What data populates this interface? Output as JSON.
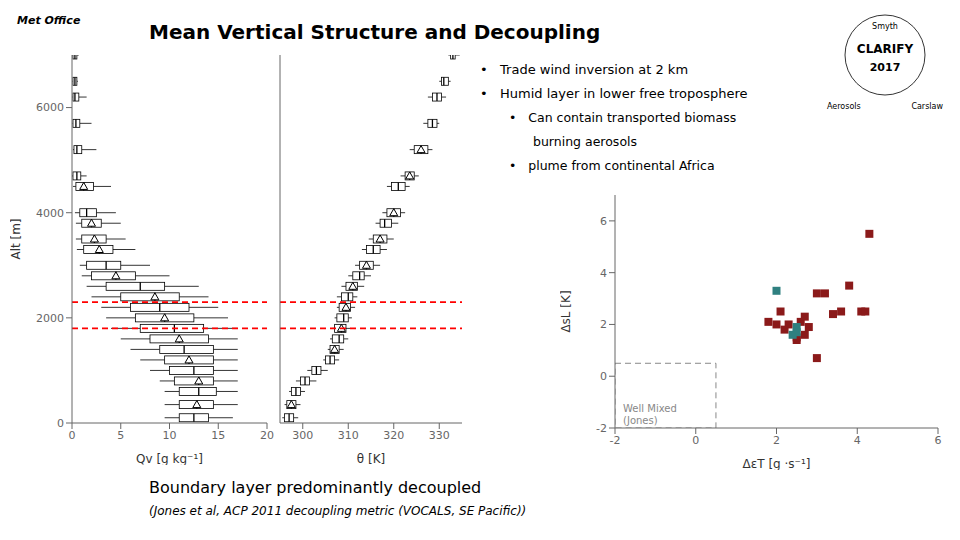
{
  "chart_data": [
    {
      "type": "box",
      "orientation": "horizontal",
      "title": "Mean Vertical Structure and Decoupling",
      "annotations": [
        "•   Trade wind inversion at 2 km",
        "•   Humid layer in lower free troposphere",
        "•   Can contain transported biomass",
        "burning aerosols",
        "•   plume from continental Africa",
        "Boundary layer predominantly decoupled",
        "(Jones et al, ACP 2011 decoupling metric (VOCALS, SE Pacific))",
        "Met Office",
        "CLARIFY",
        "2017",
        "Smyth",
        "Aerosols",
        "Carslaw"
      ],
      "xlabel": "Qv [g kg⁻¹]",
      "ylabel": "Alt [m]",
      "xlim": [
        0,
        20
      ],
      "xticks": [
        0,
        5,
        10,
        15,
        20
      ],
      "ylim": [
        0,
        7000
      ],
      "yticks": [
        0,
        2000,
        4000,
        6000
      ],
      "grid": false,
      "y": [
        7000,
        6500,
        6200,
        5700,
        5200,
        4700,
        4500,
        4000,
        3800,
        3500,
        3300,
        3000,
        2800,
        2600,
        2400,
        2200,
        2000,
        1800,
        1600,
        1400,
        1200,
        1000,
        800,
        600,
        350,
        100
      ],
      "median": [
        0.3,
        0.3,
        0.3,
        0.4,
        0.5,
        0.5,
        1.2,
        1.5,
        2.0,
        2.3,
        2.8,
        3.5,
        4.5,
        7.0,
        8.5,
        9.0,
        9.5,
        10.5,
        11.0,
        11.5,
        12.0,
        12.5,
        13.0,
        13.0,
        12.8,
        12.5
      ],
      "q1": [
        0.1,
        0.1,
        0.1,
        0.1,
        0.2,
        0.1,
        0.4,
        0.8,
        1.0,
        1.0,
        1.2,
        1.5,
        2.0,
        3.5,
        5.0,
        6.0,
        6.5,
        7.0,
        8.0,
        9.0,
        9.5,
        10.0,
        10.5,
        11.0,
        11.0,
        11.0
      ],
      "q3": [
        0.5,
        0.5,
        0.7,
        0.8,
        1.0,
        0.9,
        2.2,
        2.5,
        3.0,
        3.5,
        4.2,
        5.0,
        6.5,
        9.5,
        11.0,
        12.0,
        12.5,
        13.5,
        14.0,
        14.5,
        14.5,
        14.5,
        14.5,
        14.8,
        14.5,
        14.0
      ],
      "whisker_low": [
        0.05,
        0.05,
        0.05,
        0.05,
        0.1,
        0.0,
        0.1,
        0.3,
        0.4,
        0.4,
        0.5,
        0.8,
        1.0,
        1.5,
        2.0,
        3.0,
        3.5,
        4.0,
        5.0,
        6.0,
        7.0,
        8.0,
        9.0,
        9.5,
        9.5,
        9.5
      ],
      "whisker_high": [
        0.7,
        0.6,
        1.5,
        2.0,
        2.5,
        1.5,
        4.0,
        4.5,
        5.0,
        5.5,
        6.5,
        8.0,
        10.0,
        13.0,
        14.0,
        15.0,
        16.0,
        17.0,
        17.0,
        17.0,
        17.0,
        17.0,
        17.0,
        17.0,
        17.0,
        16.5
      ],
      "marker": "triangle",
      "marker_shown": [
        false,
        false,
        false,
        false,
        false,
        false,
        true,
        false,
        true,
        true,
        true,
        false,
        true,
        false,
        true,
        false,
        true,
        false,
        true,
        false,
        true,
        false,
        true,
        false,
        true,
        false
      ],
      "reference_lines": [
        {
          "y": 2300,
          "color": "red",
          "line_style": "dashed"
        },
        {
          "y": 1800,
          "color": "red",
          "line_style": "dashed"
        }
      ]
    },
    {
      "type": "box",
      "orientation": "horizontal",
      "xlabel": "θ [K]",
      "xlim": [
        295,
        335
      ],
      "xticks": [
        300,
        310,
        320,
        330
      ],
      "ylim": [
        0,
        7000
      ],
      "yticks": [
        0,
        2000,
        4000,
        6000
      ],
      "tick_labels": "x",
      "grid": false,
      "y": [
        7000,
        6500,
        6200,
        5700,
        5200,
        4700,
        4500,
        4000,
        3800,
        3500,
        3300,
        3000,
        2800,
        2600,
        2400,
        2200,
        2000,
        1800,
        1600,
        1400,
        1200,
        1000,
        800,
        600,
        350,
        100
      ],
      "median": [
        333.0,
        331.0,
        329.5,
        328.5,
        326.0,
        323.5,
        321.0,
        320.0,
        318.0,
        317.0,
        315.5,
        314.0,
        312.5,
        311.0,
        310.0,
        309.5,
        309.0,
        308.5,
        308.0,
        307.0,
        306.0,
        303.0,
        300.5,
        298.5,
        297.5,
        297.0
      ],
      "q1": [
        332.5,
        330.5,
        328.5,
        327.5,
        324.5,
        322.5,
        319.5,
        318.5,
        317.0,
        315.5,
        314.0,
        312.5,
        311.0,
        309.5,
        308.5,
        308.0,
        307.5,
        307.0,
        306.5,
        306.0,
        305.0,
        302.0,
        299.5,
        297.5,
        296.5,
        296.0
      ],
      "q3": [
        333.5,
        332.0,
        330.5,
        329.5,
        327.5,
        324.5,
        322.5,
        321.5,
        319.5,
        318.5,
        317.0,
        315.5,
        313.5,
        312.0,
        311.0,
        310.5,
        310.0,
        309.5,
        309.0,
        308.0,
        307.0,
        304.0,
        301.5,
        299.5,
        298.5,
        298.0
      ],
      "whisker_low": [
        332.0,
        330.0,
        327.5,
        326.5,
        323.5,
        321.5,
        318.5,
        317.5,
        316.0,
        314.5,
        313.0,
        311.5,
        310.0,
        308.5,
        307.5,
        307.5,
        307.0,
        306.5,
        306.0,
        305.5,
        304.5,
        301.0,
        298.5,
        297.0,
        296.0,
        295.5
      ],
      "whisker_high": [
        334.5,
        332.5,
        331.5,
        330.0,
        328.5,
        325.5,
        323.5,
        322.5,
        321.0,
        320.0,
        318.5,
        317.0,
        315.0,
        313.5,
        312.0,
        311.5,
        310.8,
        310.5,
        310.0,
        309.0,
        308.0,
        305.5,
        303.0,
        300.5,
        299.5,
        299.0
      ],
      "marker": "triangle",
      "marker_shown": [
        false,
        false,
        false,
        false,
        true,
        true,
        false,
        true,
        false,
        true,
        false,
        true,
        false,
        true,
        false,
        true,
        false,
        true,
        false,
        true,
        false,
        false,
        false,
        false,
        true,
        false
      ],
      "reference_lines": [
        {
          "y": 2300,
          "color": "red",
          "line_style": "dashed"
        },
        {
          "y": 1800,
          "color": "red",
          "line_style": "dashed"
        }
      ]
    },
    {
      "type": "scatter",
      "xlabel": "ΔεT [g ·s⁻¹]",
      "ylabel": "ΔsL [K]",
      "xlim": [
        -2,
        6
      ],
      "xticks": [
        -2,
        0,
        2,
        4,
        6
      ],
      "ylim": [
        -2,
        7
      ],
      "yticks": [
        -2,
        0,
        2,
        4,
        6
      ],
      "grid": false,
      "series": [
        {
          "color": "#8B1A1A",
          "marker": "square",
          "values": [
            [
              1.8,
              2.1
            ],
            [
              2.0,
              2.0
            ],
            [
              2.1,
              2.5
            ],
            [
              2.2,
              1.8
            ],
            [
              2.3,
              2.0
            ],
            [
              2.5,
              1.4
            ],
            [
              2.5,
              1.5
            ],
            [
              2.6,
              2.1
            ],
            [
              2.7,
              1.6
            ],
            [
              2.7,
              2.3
            ],
            [
              2.8,
              1.9
            ],
            [
              3.0,
              0.7
            ],
            [
              3.0,
              3.2
            ],
            [
              3.2,
              3.2
            ],
            [
              3.4,
              2.4
            ],
            [
              3.6,
              2.5
            ],
            [
              3.8,
              3.5
            ],
            [
              4.1,
              2.5
            ],
            [
              4.2,
              2.5
            ],
            [
              4.3,
              5.5
            ]
          ]
        },
        {
          "color": "#2F8080",
          "marker": "square",
          "values": [
            [
              2.0,
              3.3
            ],
            [
              2.4,
              1.6
            ],
            [
              2.5,
              1.7
            ],
            [
              2.5,
              1.9
            ]
          ]
        }
      ],
      "regions": [
        {
          "x": [
            -2,
            0.5
          ],
          "y": [
            -2,
            0.5
          ],
          "color": "#888888",
          "line_style": "dashed",
          "label": "Well Mixed\n(Jones)"
        }
      ]
    }
  ]
}
